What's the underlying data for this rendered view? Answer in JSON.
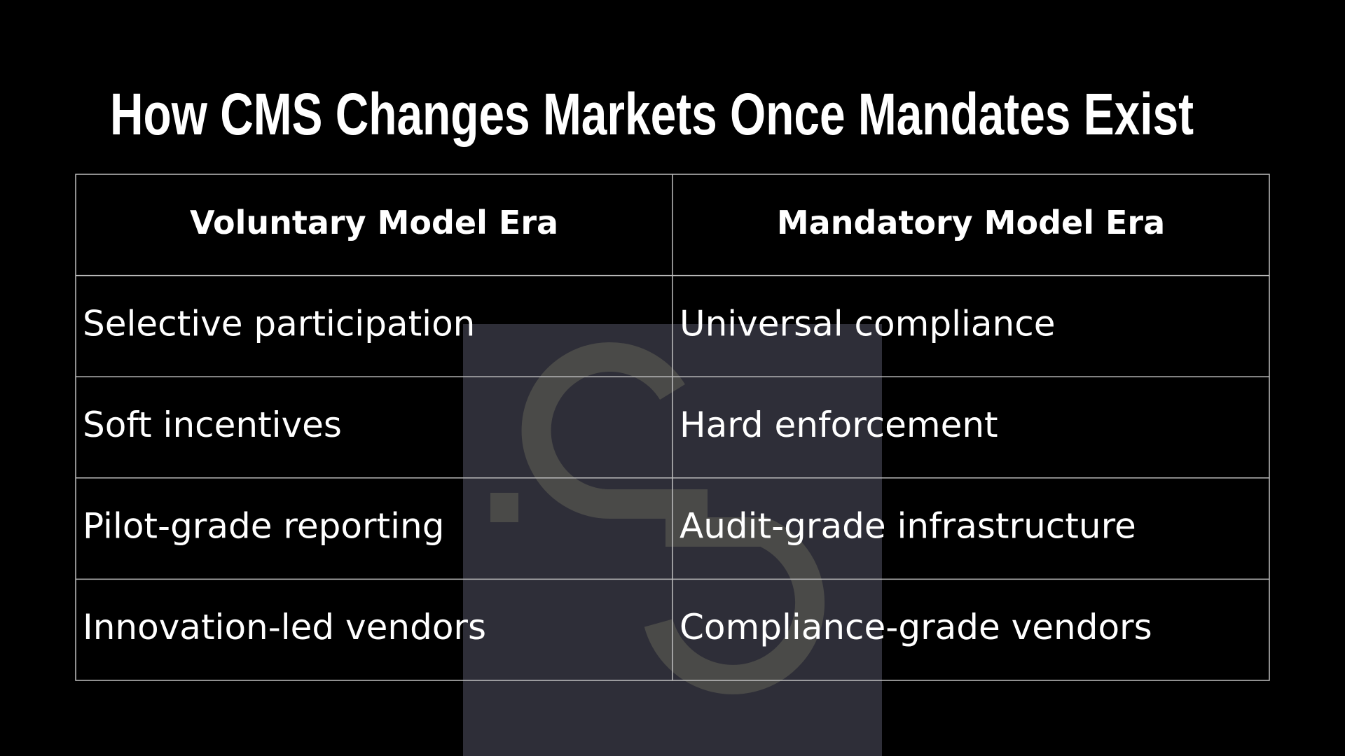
{
  "header": {
    "title": "How CMS Changes Markets Once Mandates Exist"
  },
  "table": {
    "header": [
      "Voluntary Model Era",
      "Mandatory Model Era"
    ],
    "rows": [
      [
        "Selective participation",
        "Universal compliance"
      ],
      [
        "Soft incentives",
        "Hard enforcement"
      ],
      [
        "Pilot-grade reporting",
        "Audit-grade infrastructure"
      ],
      [
        "Innovation-led vendors",
        "Compliance-grade vendors"
      ]
    ]
  }
}
